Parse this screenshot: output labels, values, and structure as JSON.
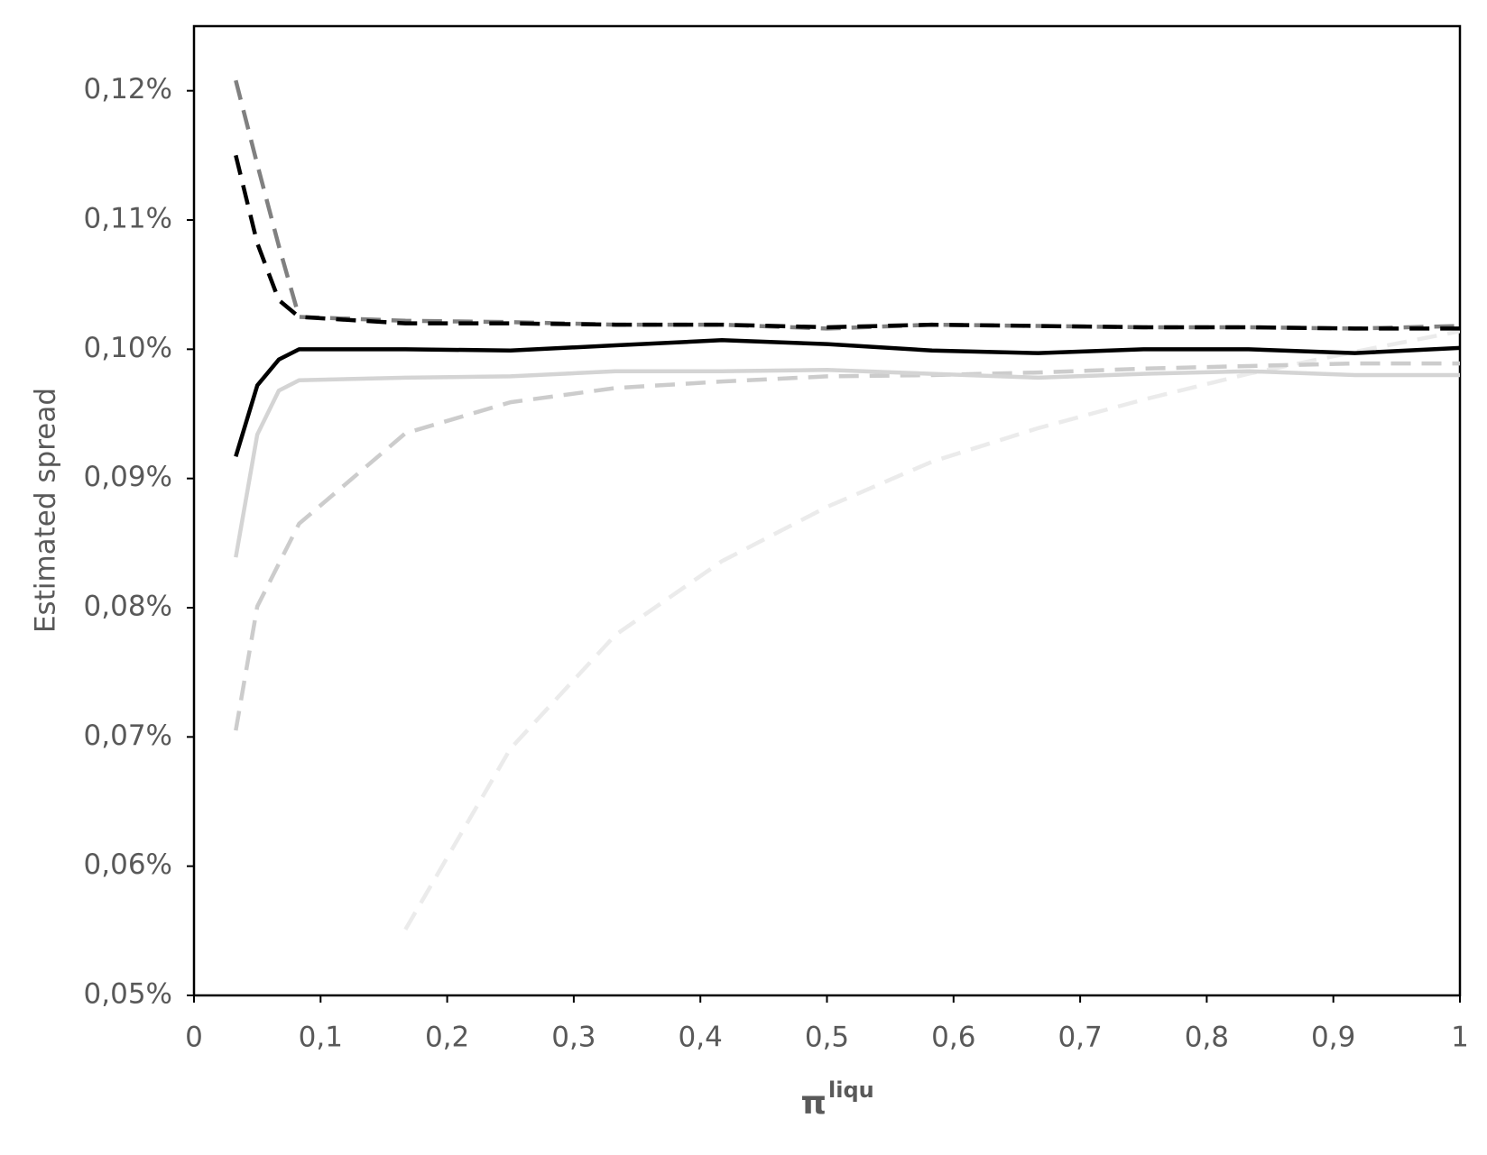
{
  "chart_data": {
    "type": "line",
    "ylabel": "Estimated spread",
    "xlabel": "π",
    "xlabel_superscript": "liqu",
    "xlim": [
      0,
      1
    ],
    "ylim": [
      0.05,
      0.125
    ],
    "xticks": [
      0,
      {
        "value": 0.1,
        "label": "0,1"
      },
      {
        "value": 0.2,
        "label": "0,2"
      },
      {
        "value": 0.3,
        "label": "0,3"
      },
      {
        "value": 0.4,
        "label": "0,4"
      },
      {
        "value": 0.5,
        "label": "0,5"
      },
      {
        "value": 0.6,
        "label": "0,6"
      },
      {
        "value": 0.7,
        "label": "0,7"
      },
      {
        "value": 0.8,
        "label": "0,8"
      },
      {
        "value": 0.9,
        "label": "0,9"
      },
      1
    ],
    "yticks": [
      {
        "value": 0.05,
        "label": "0,05%"
      },
      {
        "value": 0.06,
        "label": "0,06%"
      },
      {
        "value": 0.07,
        "label": "0,07%"
      },
      {
        "value": 0.08,
        "label": "0,08%"
      },
      {
        "value": 0.09,
        "label": "0,09%"
      },
      {
        "value": 0.1,
        "label": "0,10%"
      },
      {
        "value": 0.11,
        "label": "0,11%"
      },
      {
        "value": 0.12,
        "label": "0,12%"
      }
    ],
    "grid": false,
    "x": [
      0.033,
      0.05,
      0.067,
      0.083,
      0.167,
      0.25,
      0.333,
      0.417,
      0.5,
      0.583,
      0.667,
      0.75,
      0.833,
      0.917,
      1
    ],
    "series": [
      {
        "color": "#ebebeb",
        "dashed": true,
        "values": [
          null,
          null,
          null,
          null,
          0.0551,
          0.0691,
          0.0779,
          0.0836,
          0.0878,
          0.0913,
          0.0939,
          0.0961,
          0.0981,
          0.0998,
          0.1014
        ]
      },
      {
        "color": "#cccccc",
        "dashed": true,
        "values": [
          0.0705,
          0.0801,
          0.0834,
          0.0865,
          0.0935,
          0.0959,
          0.097,
          0.0975,
          0.0979,
          0.098,
          0.0982,
          0.0985,
          0.0987,
          0.0989,
          0.0989
        ]
      },
      {
        "color": "#d4d4d4",
        "dashed": false,
        "values": [
          0.0839,
          0.0934,
          0.0968,
          0.0976,
          0.0978,
          0.0979,
          0.0983,
          0.0983,
          0.0984,
          0.0981,
          0.0978,
          0.0981,
          0.0983,
          0.098,
          0.098
        ]
      },
      {
        "color": "#808080",
        "dashed": true,
        "values": [
          0.1208,
          0.1143,
          0.108,
          0.1025,
          0.1022,
          0.1021,
          0.1019,
          0.1019,
          0.1016,
          0.1019,
          0.1018,
          0.1017,
          0.1017,
          0.1016,
          0.1018
        ]
      },
      {
        "color": "#000000",
        "dashed": true,
        "values": [
          0.115,
          0.1082,
          0.1038,
          0.1025,
          0.102,
          0.102,
          0.1019,
          0.1019,
          0.1017,
          0.1019,
          0.1018,
          0.1017,
          0.1017,
          0.1016,
          0.1016
        ]
      },
      {
        "color": "#000000",
        "dashed": false,
        "values": [
          0.0917,
          0.0972,
          0.0992,
          0.1,
          0.1,
          0.0999,
          0.1003,
          0.1007,
          0.1004,
          0.0999,
          0.0997,
          0.1,
          0.1,
          0.0997,
          0.1001
        ]
      }
    ]
  }
}
